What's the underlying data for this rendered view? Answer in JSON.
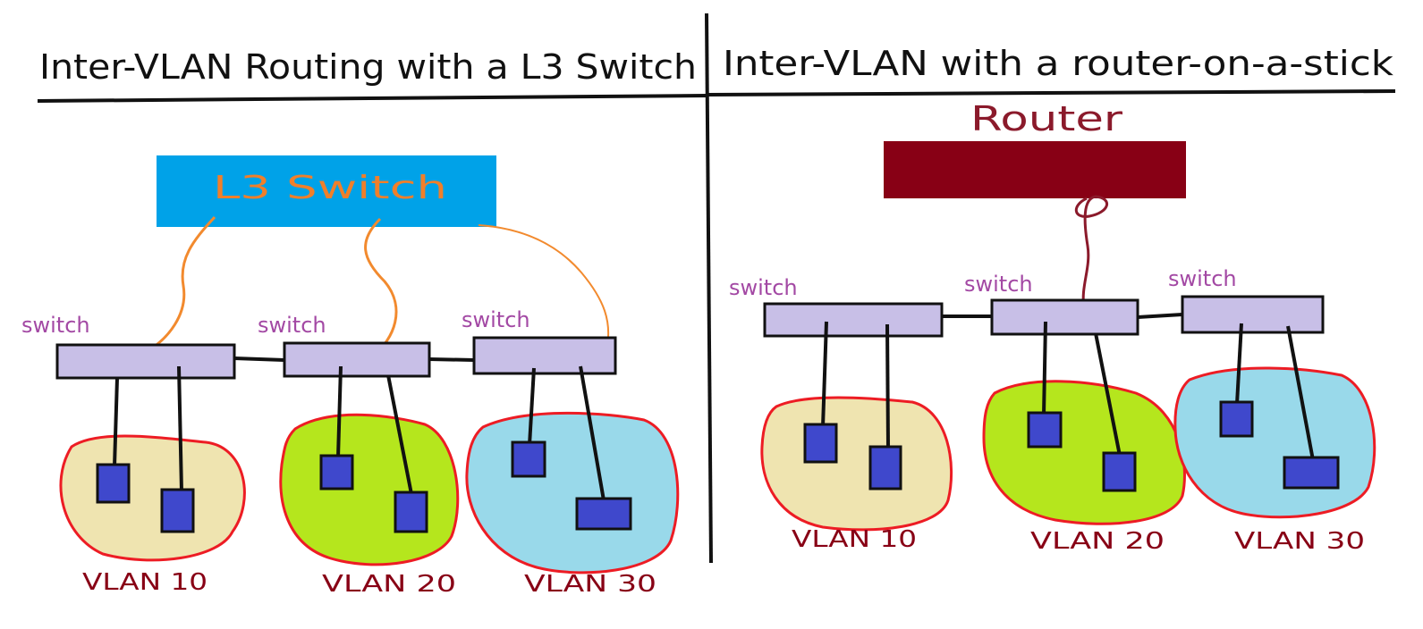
{
  "left_panel": {
    "title": "Inter-VLAN Routing with a L3 Switch",
    "core_device_label": "L3 Switch",
    "switch_labels": [
      "switch",
      "switch",
      "switch"
    ],
    "vlan_labels": [
      "VLAN 10",
      "VLAN 20",
      "VLAN 30"
    ]
  },
  "right_panel": {
    "title": "Inter-VLAN with a router-on-a-stick",
    "router_label": "Router",
    "switch_labels": [
      "switch",
      "switch",
      "switch"
    ],
    "vlan_labels": [
      "VLAN 10",
      "VLAN 20",
      "VLAN 30"
    ]
  },
  "colors": {
    "ink": "#111111",
    "l3_switch_fill": "#00a2e8",
    "l3_switch_text": "#f07f2a",
    "uplink_orange": "#f28a2e",
    "router_fill": "#880015",
    "router_text": "#8b1a2b",
    "router_cable": "#8b1a2b",
    "switch_fill": "#c8bfe7",
    "switch_label": "#a349a4",
    "host_fill": "#3f48cc",
    "vlan10_fill": "#efe4b0",
    "vlan20_fill": "#b5e61d",
    "vlan30_fill": "#99d9ea",
    "vlan_border": "#ed1c24",
    "vlan_label": "#880015"
  }
}
